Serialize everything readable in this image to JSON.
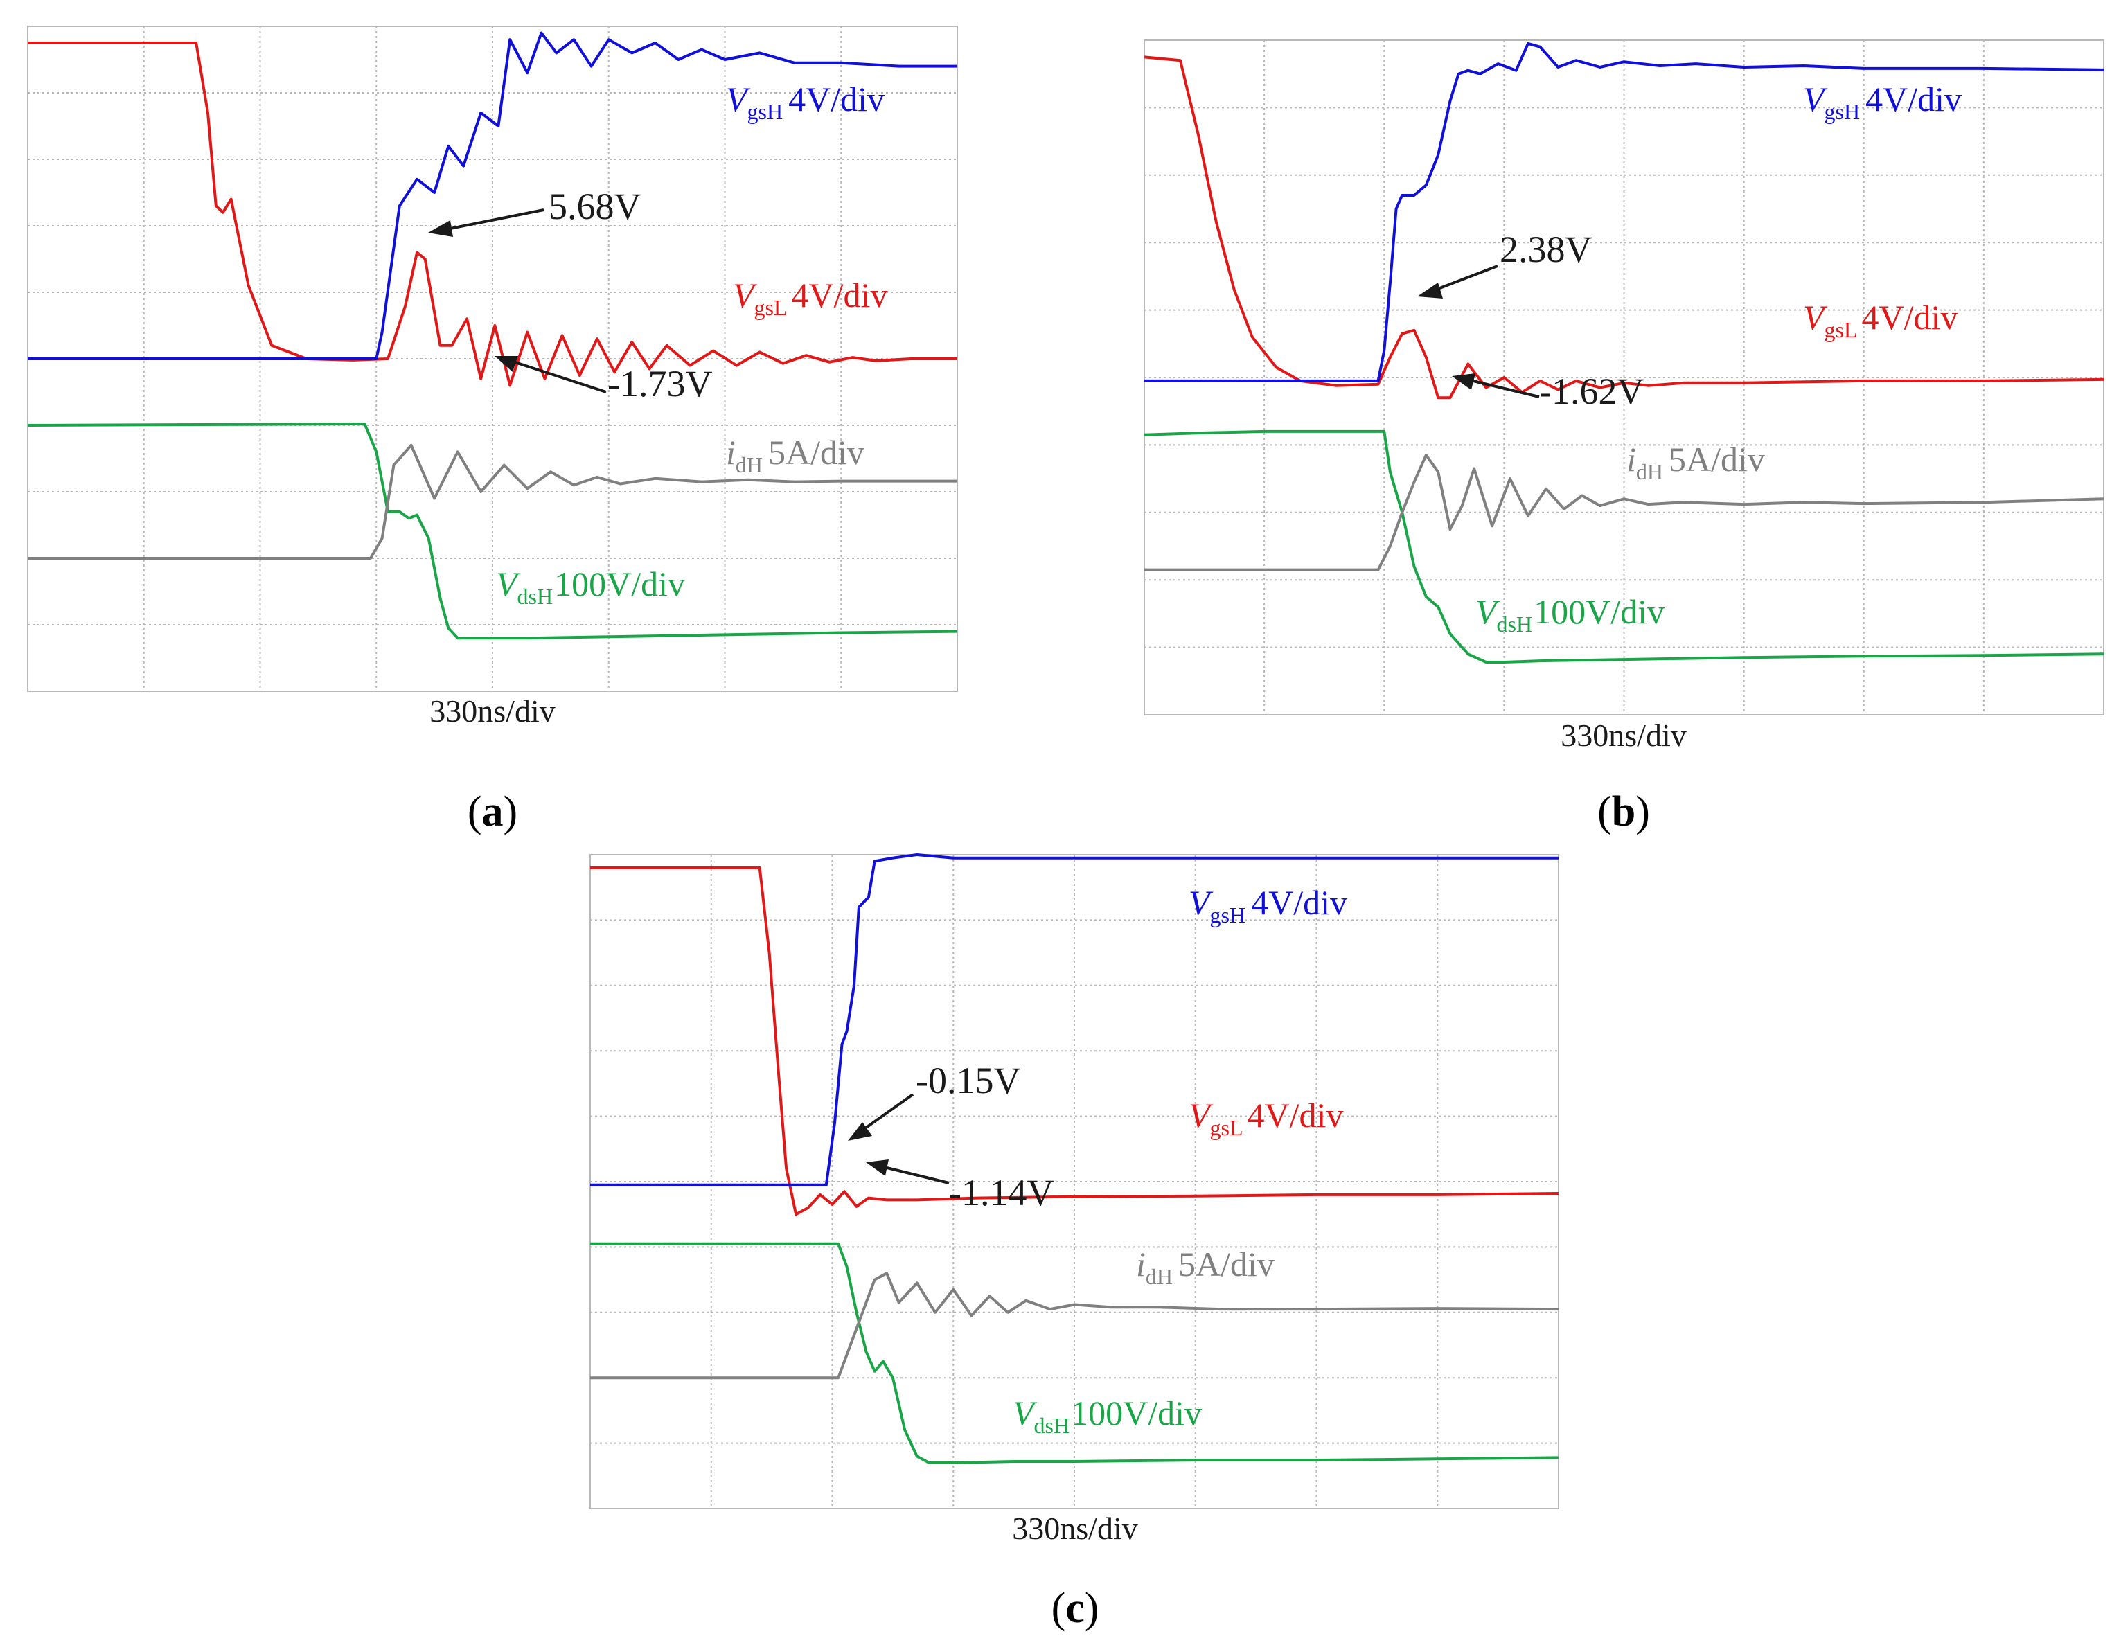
{
  "figure": {
    "colors": {
      "vgsH": "#1010d8",
      "vgsL": "#e01818",
      "idH": "#808080",
      "vdsH": "#1aa548",
      "grid": "#b8b8b8",
      "annotation": "#1a1a1a"
    }
  },
  "chart_data": [
    {
      "type": "line",
      "panel": "a",
      "panel_label": "a",
      "xlabel": "330ns/div",
      "divisions": {
        "x": 8,
        "y": 10
      },
      "annotations": [
        {
          "text": "5.68V",
          "target_x": 3.4,
          "target_y": 6.55
        },
        {
          "text": "-1.73V",
          "target_x": 4.0,
          "target_y": 4.55
        }
      ],
      "series": [
        {
          "key": "vgsH",
          "name": "V",
          "subscript": "gsH",
          "scale": "4V/div",
          "x": [
            0,
            3.0,
            3.05,
            3.2,
            3.35,
            3.5,
            3.62,
            3.75,
            3.9,
            4.05,
            4.15,
            4.3,
            4.42,
            4.55,
            4.7,
            4.85,
            5.0,
            5.2,
            5.4,
            5.6,
            5.8,
            6.0,
            6.3,
            6.6,
            7.0,
            7.5,
            8.0
          ],
          "y": [
            5.0,
            5.0,
            5.4,
            7.3,
            7.7,
            7.5,
            8.2,
            7.9,
            8.7,
            8.5,
            9.8,
            9.3,
            9.9,
            9.6,
            9.8,
            9.4,
            9.8,
            9.6,
            9.75,
            9.5,
            9.65,
            9.5,
            9.6,
            9.45,
            9.45,
            9.4,
            9.4
          ]
        },
        {
          "key": "vgsL",
          "name": "V",
          "subscript": "gsL",
          "scale": "4V/div",
          "x": [
            0,
            1.45,
            1.55,
            1.62,
            1.68,
            1.75,
            1.9,
            2.1,
            2.4,
            2.8,
            3.1,
            3.25,
            3.35,
            3.42,
            3.55,
            3.65,
            3.78,
            3.9,
            4.02,
            4.15,
            4.3,
            4.45,
            4.6,
            4.75,
            4.9,
            5.05,
            5.2,
            5.35,
            5.5,
            5.7,
            5.9,
            6.1,
            6.3,
            6.5,
            6.7,
            6.9,
            7.1,
            7.3,
            7.6,
            8.0
          ],
          "y": [
            9.75,
            9.75,
            8.7,
            7.3,
            7.2,
            7.4,
            6.1,
            5.2,
            5.0,
            4.98,
            5.0,
            5.8,
            6.6,
            6.5,
            5.2,
            5.2,
            5.6,
            4.7,
            5.5,
            4.6,
            5.4,
            4.7,
            5.35,
            4.75,
            5.3,
            4.8,
            5.25,
            4.85,
            5.2,
            4.9,
            5.12,
            4.9,
            5.1,
            4.93,
            5.05,
            4.95,
            5.02,
            4.97,
            5.0,
            5.0
          ]
        },
        {
          "key": "idH",
          "name": "i",
          "subscript": "dH",
          "scale": "5A/div",
          "x": [
            0,
            2.95,
            3.05,
            3.15,
            3.3,
            3.5,
            3.7,
            3.9,
            4.1,
            4.3,
            4.5,
            4.7,
            4.9,
            5.1,
            5.4,
            5.8,
            6.2,
            6.6,
            7.0,
            8.0
          ],
          "y": [
            2.0,
            2.0,
            2.3,
            3.4,
            3.7,
            2.9,
            3.6,
            3.0,
            3.4,
            3.05,
            3.3,
            3.1,
            3.22,
            3.12,
            3.2,
            3.15,
            3.18,
            3.15,
            3.16,
            3.16
          ]
        },
        {
          "key": "vdsH",
          "name": "V",
          "subscript": "dsH",
          "scale": "100V/div",
          "x": [
            0,
            2.9,
            3.0,
            3.1,
            3.2,
            3.28,
            3.35,
            3.45,
            3.55,
            3.62,
            3.7,
            3.85,
            4.0,
            4.3,
            5.0,
            6.0,
            7.0,
            8.0
          ],
          "y": [
            4.0,
            4.02,
            3.6,
            2.7,
            2.7,
            2.6,
            2.65,
            2.3,
            1.4,
            0.95,
            0.8,
            0.8,
            0.8,
            0.8,
            0.82,
            0.85,
            0.88,
            0.9
          ]
        }
      ]
    },
    {
      "type": "line",
      "panel": "b",
      "panel_label": "b",
      "xlabel": "330ns/div",
      "divisions": {
        "x": 8,
        "y": 10
      },
      "annotations": [
        {
          "text": "2.38V",
          "target_x": 2.2,
          "target_y": 5.7
        },
        {
          "text": "-1.62V",
          "target_x": 2.55,
          "target_y": 4.6
        }
      ],
      "series": [
        {
          "key": "vgsH",
          "name": "V",
          "subscript": "gsH",
          "scale": "4V/div",
          "x": [
            0,
            1.95,
            2.0,
            2.05,
            2.1,
            2.15,
            2.25,
            2.35,
            2.45,
            2.55,
            2.62,
            2.7,
            2.8,
            2.95,
            3.1,
            3.2,
            3.3,
            3.45,
            3.6,
            3.8,
            4.0,
            4.3,
            4.6,
            5.0,
            5.5,
            6.0,
            7.0,
            8.0
          ],
          "y": [
            4.95,
            4.95,
            5.4,
            6.4,
            7.5,
            7.7,
            7.7,
            7.85,
            8.3,
            9.1,
            9.5,
            9.55,
            9.5,
            9.65,
            9.55,
            9.95,
            9.9,
            9.6,
            9.7,
            9.6,
            9.68,
            9.62,
            9.65,
            9.6,
            9.62,
            9.58,
            9.58,
            9.56
          ]
        },
        {
          "key": "vgsL",
          "name": "V",
          "subscript": "gsL",
          "scale": "4V/div",
          "x": [
            0,
            0.3,
            0.45,
            0.6,
            0.75,
            0.9,
            1.1,
            1.3,
            1.6,
            1.95,
            2.05,
            2.15,
            2.25,
            2.35,
            2.45,
            2.55,
            2.7,
            2.85,
            3.0,
            3.15,
            3.3,
            3.45,
            3.6,
            3.8,
            4.0,
            4.2,
            4.5,
            5.0,
            6.0,
            7.0,
            8.0
          ],
          "y": [
            9.75,
            9.7,
            8.6,
            7.3,
            6.3,
            5.6,
            5.15,
            4.95,
            4.88,
            4.9,
            5.3,
            5.65,
            5.7,
            5.3,
            4.7,
            4.7,
            5.2,
            4.85,
            5.0,
            4.78,
            4.95,
            4.82,
            4.95,
            4.85,
            4.92,
            4.88,
            4.92,
            4.92,
            4.95,
            4.95,
            4.97
          ]
        },
        {
          "key": "idH",
          "name": "i",
          "subscript": "dH",
          "scale": "5A/div",
          "x": [
            0,
            1.95,
            2.05,
            2.15,
            2.25,
            2.35,
            2.45,
            2.55,
            2.65,
            2.75,
            2.9,
            3.05,
            3.2,
            3.35,
            3.5,
            3.65,
            3.8,
            4.0,
            4.2,
            4.5,
            5.0,
            5.5,
            6.0,
            7.0,
            8.0
          ],
          "y": [
            2.15,
            2.15,
            2.5,
            3.0,
            3.45,
            3.85,
            3.6,
            2.75,
            3.1,
            3.65,
            2.8,
            3.5,
            2.95,
            3.35,
            3.05,
            3.25,
            3.1,
            3.2,
            3.12,
            3.15,
            3.12,
            3.15,
            3.13,
            3.15,
            3.2
          ]
        },
        {
          "key": "vdsH",
          "name": "V",
          "subscript": "dsH",
          "scale": "100V/div",
          "x": [
            0,
            0.5,
            1.0,
            2.0,
            2.05,
            2.15,
            2.25,
            2.35,
            2.45,
            2.55,
            2.7,
            2.85,
            3.0,
            3.3,
            4.0,
            5.0,
            6.0,
            7.0,
            8.0
          ],
          "y": [
            4.15,
            4.18,
            4.2,
            4.2,
            3.6,
            3.0,
            2.2,
            1.75,
            1.6,
            1.2,
            0.9,
            0.78,
            0.78,
            0.8,
            0.82,
            0.85,
            0.87,
            0.88,
            0.9
          ]
        }
      ]
    },
    {
      "type": "line",
      "panel": "c",
      "panel_label": "c",
      "xlabel": "330ns/div",
      "divisions": {
        "x": 8,
        "y": 10
      },
      "annotations": [
        {
          "text": "-0.15V",
          "target_x": 2.05,
          "target_y": 4.9
        },
        {
          "text": "-1.14V",
          "target_x": 2.25,
          "target_y": 4.75
        }
      ],
      "series": [
        {
          "key": "vgsH",
          "name": "V",
          "subscript": "gsH",
          "scale": "4V/div",
          "x": [
            0,
            1.95,
            2.02,
            2.08,
            2.12,
            2.18,
            2.22,
            2.3,
            2.35,
            2.5,
            2.7,
            3.0,
            3.5,
            4.0,
            5.0,
            6.0,
            7.0,
            8.0
          ],
          "y": [
            4.95,
            4.95,
            5.9,
            7.1,
            7.3,
            8.0,
            9.2,
            9.35,
            9.9,
            9.95,
            10.0,
            9.95,
            9.95,
            9.95,
            9.95,
            9.95,
            9.95,
            9.95
          ]
        },
        {
          "key": "vgsL",
          "name": "V",
          "subscript": "gsL",
          "scale": "4V/div",
          "x": [
            0,
            1.4,
            1.48,
            1.55,
            1.62,
            1.7,
            1.8,
            1.9,
            2.0,
            2.1,
            2.2,
            2.3,
            2.45,
            2.7,
            3.2,
            4.0,
            5.0,
            6.0,
            7.0,
            8.0
          ],
          "y": [
            9.8,
            9.8,
            8.5,
            6.8,
            5.2,
            4.5,
            4.6,
            4.8,
            4.65,
            4.85,
            4.62,
            4.75,
            4.72,
            4.72,
            4.75,
            4.77,
            4.78,
            4.8,
            4.8,
            4.82
          ]
        },
        {
          "key": "idH",
          "name": "i",
          "subscript": "dH",
          "scale": "5A/div",
          "x": [
            0,
            2.05,
            2.15,
            2.25,
            2.35,
            2.45,
            2.55,
            2.7,
            2.85,
            3.0,
            3.15,
            3.3,
            3.45,
            3.6,
            3.8,
            4.0,
            4.3,
            4.7,
            5.2,
            6.0,
            7.0,
            8.0
          ],
          "y": [
            2.0,
            2.0,
            2.5,
            3.0,
            3.5,
            3.6,
            3.15,
            3.45,
            3.0,
            3.35,
            2.95,
            3.25,
            3.0,
            3.18,
            3.05,
            3.12,
            3.08,
            3.08,
            3.05,
            3.05,
            3.06,
            3.05
          ]
        },
        {
          "key": "vdsH",
          "name": "V",
          "subscript": "dsH",
          "scale": "100V/div",
          "x": [
            0,
            1.0,
            2.05,
            2.12,
            2.2,
            2.28,
            2.35,
            2.42,
            2.5,
            2.6,
            2.7,
            2.8,
            3.0,
            3.5,
            4.0,
            5.0,
            6.0,
            7.0,
            8.0
          ],
          "y": [
            4.05,
            4.05,
            4.05,
            3.7,
            3.0,
            2.4,
            2.1,
            2.25,
            2.0,
            1.2,
            0.8,
            0.7,
            0.7,
            0.72,
            0.72,
            0.74,
            0.74,
            0.76,
            0.78
          ]
        }
      ]
    }
  ]
}
